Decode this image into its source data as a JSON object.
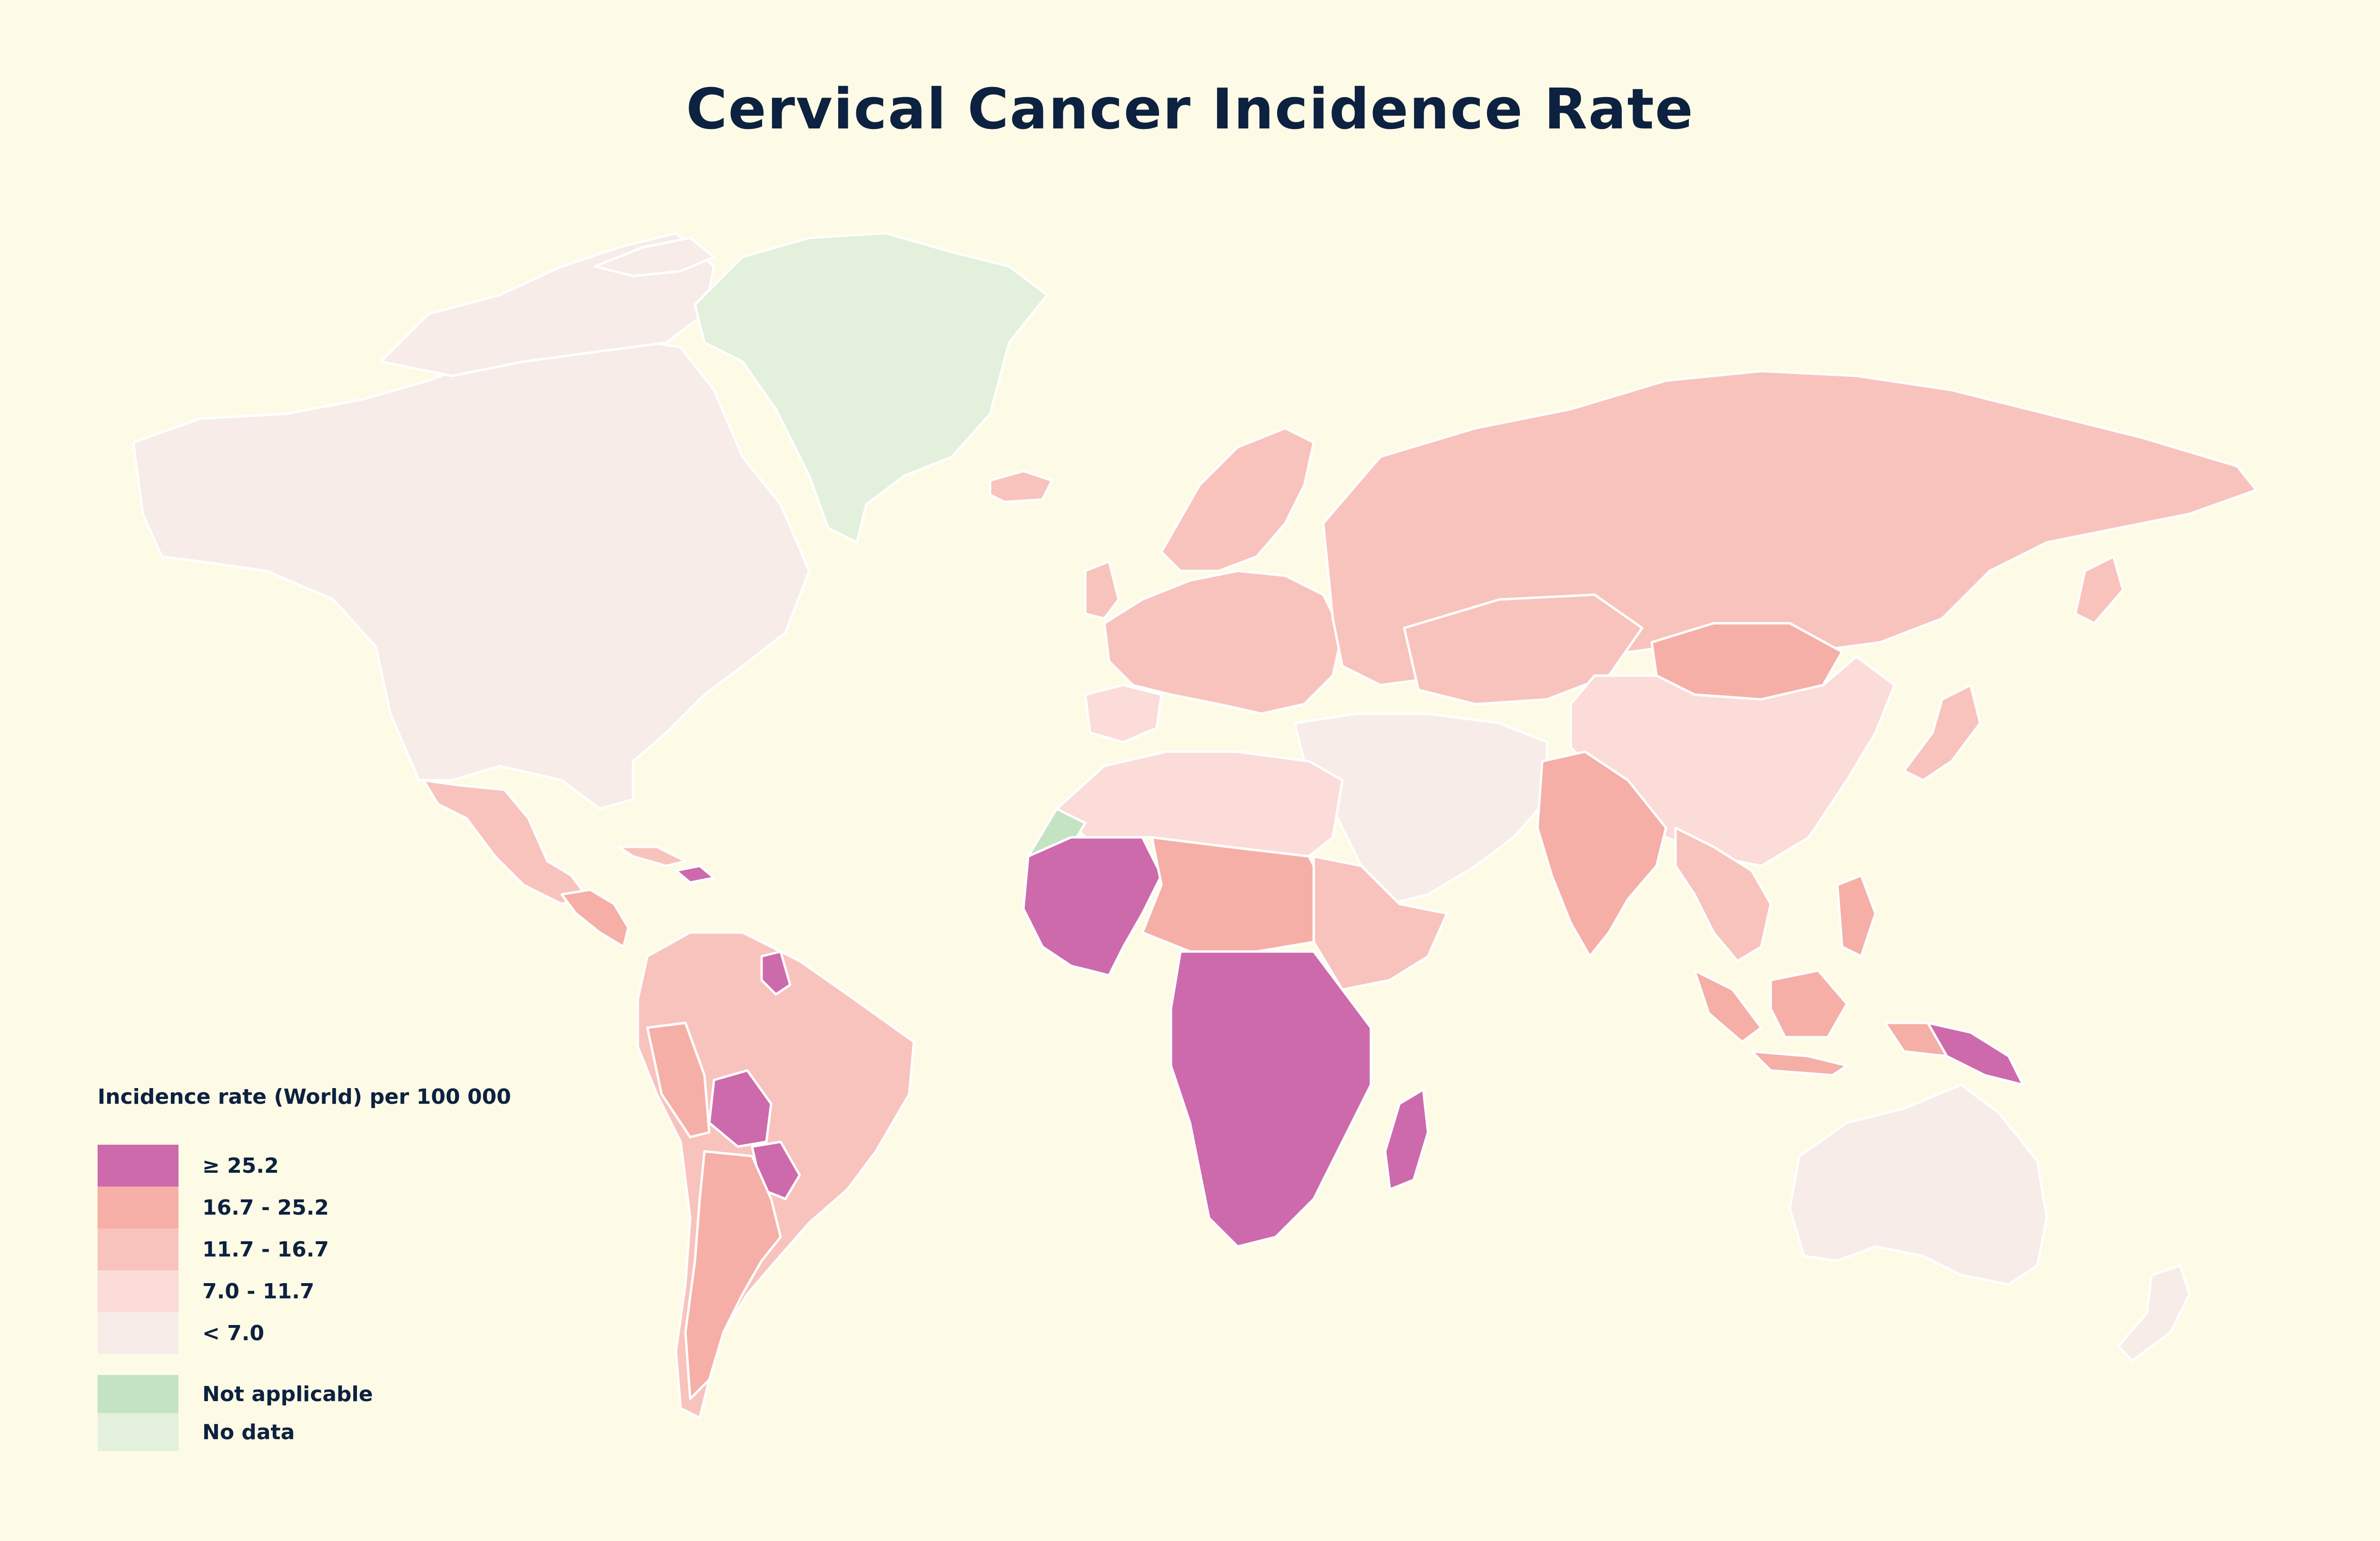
{
  "title": "Cervical Cancer Incidence Rate",
  "legend": {
    "title": "Incidence rate (World) per 100 000",
    "classes": [
      {
        "label": "≥ 25.2",
        "color": "#cd6aac"
      },
      {
        "label": "16.7 - 25.2",
        "color": "#f5afa6"
      },
      {
        "label": "11.7 - 16.7",
        "color": "#f8c3bc"
      },
      {
        "label": "7.0 - 11.7",
        "color": "#fbdcd8"
      },
      {
        "label": "< 7.0",
        "color": "#f8ece8"
      }
    ],
    "other": [
      {
        "label": "Not applicable",
        "color": "#c4e3c2"
      },
      {
        "label": "No data",
        "color": "#e2f0dc"
      }
    ]
  }
}
